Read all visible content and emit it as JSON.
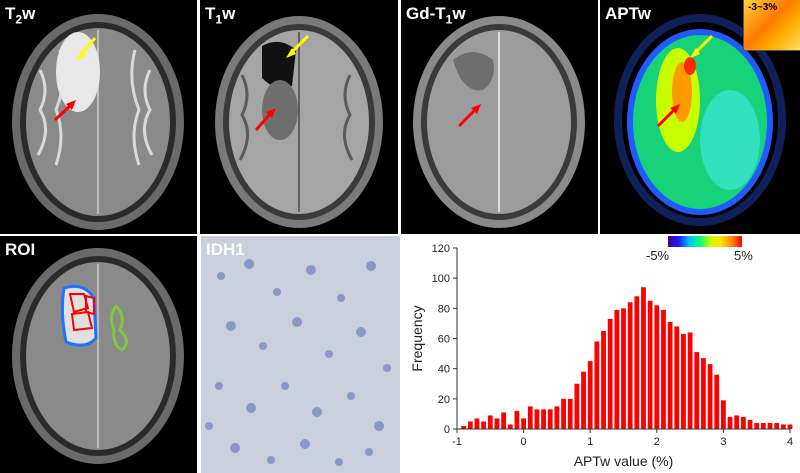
{
  "panels": {
    "t2w": {
      "main": "T",
      "sub": "2",
      "rest": "w"
    },
    "t1w": {
      "main": "T",
      "sub": "1",
      "rest": "w"
    },
    "gd": {
      "main": "Gd-T",
      "sub": "1",
      "rest": "w"
    },
    "aptw": {
      "main": "APTw"
    },
    "roi": {
      "main": "ROI"
    },
    "idh1": {
      "main": "IDH1"
    }
  },
  "aptw_inset_label": "-3~3%",
  "colorbar": {
    "min_label": "-5%",
    "max_label": "5%"
  },
  "chart_data": {
    "type": "bar",
    "xlabel": "APTw value (%)",
    "ylabel": "Frequency",
    "xlim": [
      -1,
      4
    ],
    "ylim": [
      0,
      120
    ],
    "xticks": [
      -1,
      0,
      1,
      2,
      3,
      4
    ],
    "yticks": [
      0,
      20,
      40,
      60,
      80,
      100,
      120
    ],
    "bar_color": "#ff0000",
    "bin_width": 0.1,
    "x": [
      -0.9,
      -0.8,
      -0.7,
      -0.6,
      -0.5,
      -0.4,
      -0.3,
      -0.2,
      -0.1,
      0.0,
      0.1,
      0.2,
      0.3,
      0.4,
      0.5,
      0.6,
      0.7,
      0.8,
      0.9,
      1.0,
      1.1,
      1.2,
      1.3,
      1.4,
      1.5,
      1.6,
      1.7,
      1.8,
      1.9,
      2.0,
      2.1,
      2.2,
      2.3,
      2.4,
      2.5,
      2.6,
      2.7,
      2.8,
      2.9,
      3.0,
      3.1,
      3.2,
      3.3,
      3.4,
      3.5,
      3.6,
      3.7,
      3.8,
      3.9,
      4.0
    ],
    "values": [
      2,
      5,
      7,
      5,
      9,
      7,
      11,
      3,
      12,
      7,
      15,
      13,
      13,
      13,
      15,
      20,
      20,
      30,
      38,
      45,
      58,
      65,
      73,
      79,
      80,
      84,
      88,
      94,
      85,
      82,
      79,
      71,
      68,
      63,
      64,
      51,
      47,
      43,
      36,
      19,
      8,
      9,
      8,
      6,
      4,
      4,
      4,
      4,
      3,
      3
    ]
  }
}
